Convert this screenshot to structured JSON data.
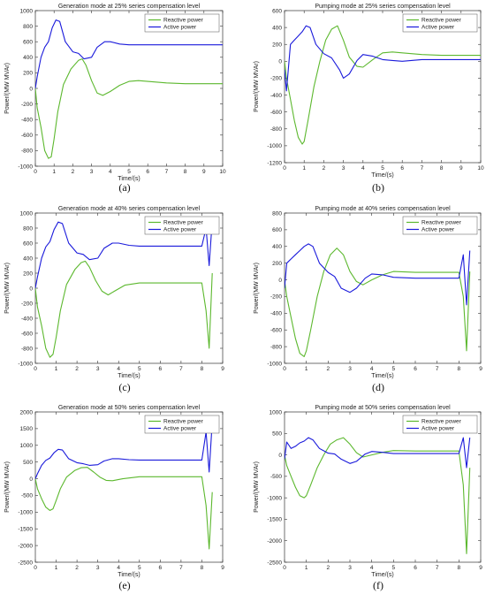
{
  "figure": {
    "captions": [
      "(a)",
      "(b)",
      "(c)",
      "(d)",
      "(e)",
      "(f)"
    ]
  },
  "chart_data": [
    {
      "type": "line",
      "title": "Generation mode at 25% series compensation level",
      "xlabel": "Time/(s)",
      "ylabel": "Power/(MW MVAr)",
      "xlim": [
        0,
        10
      ],
      "ylim": [
        -1000,
        1000
      ],
      "xticks": [
        0,
        1,
        2,
        3,
        4,
        5,
        6,
        7,
        8,
        9,
        10
      ],
      "yticks": [
        -1000,
        -800,
        -600,
        -400,
        -200,
        0,
        200,
        400,
        600,
        800,
        1000
      ],
      "legend_position": "top-right",
      "series": [
        {
          "name": "Reactive power",
          "color": "#5cb82e",
          "x": [
            0,
            0.1,
            0.3,
            0.5,
            0.7,
            0.85,
            1.0,
            1.2,
            1.5,
            1.9,
            2.3,
            2.5,
            2.7,
            3.0,
            3.3,
            3.6,
            4.0,
            4.5,
            5.0,
            5.5,
            6.0,
            7.0,
            8.0,
            9.0,
            10.0
          ],
          "y": [
            0,
            -250,
            -500,
            -800,
            -900,
            -880,
            -650,
            -300,
            50,
            250,
            360,
            380,
            300,
            100,
            -60,
            -90,
            -40,
            40,
            90,
            100,
            90,
            70,
            60,
            60,
            60
          ]
        },
        {
          "name": "Active power",
          "color": "#1a1adb",
          "x": [
            0,
            0.1,
            0.3,
            0.5,
            0.7,
            0.9,
            1.1,
            1.3,
            1.6,
            2.0,
            2.3,
            2.6,
            3.0,
            3.3,
            3.7,
            4.0,
            4.5,
            5.0,
            6.0,
            7.0,
            8.0,
            9.0,
            10.0
          ],
          "y": [
            0,
            150,
            400,
            530,
            600,
            780,
            880,
            860,
            600,
            470,
            450,
            380,
            400,
            530,
            600,
            600,
            570,
            560,
            560,
            560,
            560,
            560,
            560
          ]
        }
      ]
    },
    {
      "type": "line",
      "title": "Pumping mode at 25% series compensation level",
      "xlabel": "Time/(s)",
      "ylabel": "Power/(MW MVAr)",
      "xlim": [
        0,
        10
      ],
      "ylim": [
        -1200,
        600
      ],
      "xticks": [
        0,
        1,
        2,
        3,
        4,
        5,
        6,
        7,
        8,
        9,
        10
      ],
      "yticks": [
        -1200,
        -1000,
        -800,
        -600,
        -400,
        -200,
        0,
        200,
        400,
        600
      ],
      "legend_position": "top-right",
      "series": [
        {
          "name": "Reactive power",
          "color": "#5cb82e",
          "x": [
            0,
            0.1,
            0.3,
            0.5,
            0.7,
            0.9,
            1.0,
            1.2,
            1.5,
            1.8,
            2.1,
            2.4,
            2.7,
            3.0,
            3.3,
            3.7,
            4.0,
            4.5,
            5.0,
            5.5,
            6.0,
            7.0,
            8.0,
            9.0,
            10.0
          ],
          "y": [
            0,
            -200,
            -450,
            -700,
            -900,
            -980,
            -950,
            -700,
            -300,
            0,
            250,
            380,
            420,
            250,
            50,
            -60,
            -70,
            20,
            100,
            110,
            100,
            80,
            70,
            70,
            70
          ]
        },
        {
          "name": "Active power",
          "color": "#1a1adb",
          "x": [
            0,
            0.1,
            0.3,
            0.5,
            0.7,
            0.9,
            1.1,
            1.3,
            1.6,
            2.0,
            2.4,
            2.8,
            3.0,
            3.3,
            3.7,
            4.0,
            4.5,
            5.0,
            5.5,
            6.0,
            7.0,
            8.0,
            9.0,
            10.0
          ],
          "y": [
            -100,
            -350,
            200,
            250,
            300,
            350,
            420,
            400,
            200,
            90,
            40,
            -100,
            -200,
            -150,
            10,
            80,
            60,
            20,
            10,
            0,
            20,
            20,
            20,
            20
          ]
        }
      ]
    },
    {
      "type": "line",
      "title": "Generation mode at 40% series compensation level",
      "xlabel": "Time/(s)",
      "ylabel": "Power/(MW MVAr)",
      "xlim": [
        0,
        9
      ],
      "ylim": [
        -1000,
        1000
      ],
      "xticks": [
        0,
        1,
        2,
        3,
        4,
        5,
        6,
        7,
        8,
        9
      ],
      "yticks": [
        -1000,
        -800,
        -600,
        -400,
        -200,
        0,
        200,
        400,
        600,
        800,
        1000
      ],
      "legend_position": "top-right",
      "series": [
        {
          "name": "Reactive power",
          "color": "#5cb82e",
          "x": [
            0,
            0.1,
            0.3,
            0.5,
            0.7,
            0.85,
            1.0,
            1.2,
            1.5,
            1.9,
            2.2,
            2.4,
            2.6,
            2.9,
            3.2,
            3.5,
            3.8,
            4.3,
            5.0,
            6.0,
            7.0,
            8.0,
            8.2,
            8.35,
            8.5
          ],
          "y": [
            0,
            -250,
            -500,
            -800,
            -920,
            -880,
            -650,
            -300,
            50,
            250,
            340,
            360,
            280,
            100,
            -40,
            -90,
            -40,
            40,
            70,
            70,
            70,
            70,
            -300,
            -800,
            200
          ]
        },
        {
          "name": "Active power",
          "color": "#1a1adb",
          "x": [
            0,
            0.1,
            0.3,
            0.5,
            0.7,
            0.9,
            1.1,
            1.3,
            1.6,
            2.0,
            2.3,
            2.6,
            3.0,
            3.3,
            3.7,
            4.0,
            4.5,
            5.0,
            6.0,
            7.0,
            8.0,
            8.2,
            8.35,
            8.5
          ],
          "y": [
            0,
            150,
            400,
            550,
            620,
            780,
            880,
            860,
            600,
            470,
            450,
            380,
            400,
            530,
            600,
            600,
            570,
            560,
            560,
            560,
            560,
            800,
            300,
            900
          ]
        }
      ]
    },
    {
      "type": "line",
      "title": "Pumping mode at 40% series compensation level",
      "xlabel": "Time/(s)",
      "ylabel": "Power/(MW MVAr)",
      "xlim": [
        0,
        9
      ],
      "ylim": [
        -1000,
        800
      ],
      "xticks": [
        0,
        1,
        2,
        3,
        4,
        5,
        6,
        7,
        8,
        9
      ],
      "yticks": [
        -1000,
        -800,
        -600,
        -400,
        -200,
        0,
        200,
        400,
        600,
        800
      ],
      "legend_position": "top-right",
      "series": [
        {
          "name": "Reactive power",
          "color": "#5cb82e",
          "x": [
            0,
            0.1,
            0.3,
            0.5,
            0.7,
            0.9,
            1.0,
            1.2,
            1.5,
            1.8,
            2.1,
            2.4,
            2.7,
            3.0,
            3.3,
            3.6,
            4.0,
            4.5,
            5.0,
            6.0,
            7.0,
            8.0,
            8.2,
            8.35,
            8.5
          ],
          "y": [
            0,
            -200,
            -450,
            -700,
            -880,
            -920,
            -850,
            -600,
            -200,
            100,
            300,
            380,
            300,
            100,
            -20,
            -60,
            0,
            60,
            100,
            90,
            90,
            90,
            -200,
            -850,
            100
          ]
        },
        {
          "name": "Active power",
          "color": "#1a1adb",
          "x": [
            0,
            0.1,
            0.3,
            0.5,
            0.7,
            0.9,
            1.1,
            1.3,
            1.6,
            2.0,
            2.3,
            2.6,
            3.0,
            3.3,
            3.7,
            4.0,
            4.5,
            5.0,
            6.0,
            7.0,
            8.0,
            8.2,
            8.35,
            8.5
          ],
          "y": [
            -100,
            200,
            250,
            300,
            350,
            400,
            430,
            400,
            200,
            90,
            40,
            -100,
            -150,
            -100,
            20,
            70,
            60,
            30,
            20,
            20,
            20,
            300,
            -300,
            350
          ]
        }
      ]
    },
    {
      "type": "line",
      "title": "Generation mode at 50% series compensation level",
      "xlabel": "Time/(s)",
      "ylabel": "Power/(MW MVAr)",
      "xlim": [
        0,
        9
      ],
      "ylim": [
        -2500,
        2000
      ],
      "xticks": [
        0,
        1,
        2,
        3,
        4,
        5,
        6,
        7,
        8,
        9
      ],
      "yticks": [
        -2500,
        -2000,
        -1500,
        -1000,
        -500,
        0,
        500,
        1000,
        1500,
        2000
      ],
      "legend_position": "top-right",
      "series": [
        {
          "name": "Reactive power",
          "color": "#5cb82e",
          "x": [
            0,
            0.1,
            0.3,
            0.5,
            0.7,
            0.85,
            1.0,
            1.2,
            1.5,
            1.9,
            2.2,
            2.5,
            2.8,
            3.1,
            3.4,
            3.7,
            4.2,
            5.0,
            6.0,
            7.0,
            8.0,
            8.2,
            8.35,
            8.5
          ],
          "y": [
            0,
            -300,
            -600,
            -850,
            -950,
            -900,
            -650,
            -300,
            50,
            250,
            330,
            340,
            200,
            50,
            -50,
            -60,
            0,
            60,
            60,
            60,
            60,
            -800,
            -2100,
            -400
          ]
        },
        {
          "name": "Active power",
          "color": "#1a1adb",
          "x": [
            0,
            0.1,
            0.3,
            0.5,
            0.7,
            0.9,
            1.1,
            1.3,
            1.6,
            2.0,
            2.3,
            2.6,
            3.0,
            3.3,
            3.7,
            4.0,
            4.5,
            5.0,
            6.0,
            7.0,
            8.0,
            8.2,
            8.35,
            8.5
          ],
          "y": [
            0,
            150,
            400,
            550,
            620,
            780,
            880,
            860,
            600,
            480,
            450,
            400,
            420,
            530,
            600,
            600,
            570,
            560,
            560,
            560,
            560,
            1400,
            200,
            1700
          ]
        }
      ]
    },
    {
      "type": "line",
      "title": "Pumping mode at 50% series compensation level",
      "xlabel": "Time/(s)",
      "ylabel": "Power/(MW MVAr)",
      "xlim": [
        0,
        9
      ],
      "ylim": [
        -2500,
        1000
      ],
      "xticks": [
        0,
        1,
        2,
        3,
        4,
        5,
        6,
        7,
        8,
        9
      ],
      "yticks": [
        -2500,
        -2000,
        -1500,
        -1000,
        -500,
        0,
        500,
        1000
      ],
      "legend_position": "top-right",
      "series": [
        {
          "name": "Reactive power",
          "color": "#5cb82e",
          "x": [
            0,
            0.1,
            0.3,
            0.5,
            0.7,
            0.9,
            1.0,
            1.2,
            1.5,
            1.8,
            2.1,
            2.4,
            2.7,
            3.0,
            3.3,
            3.6,
            4.0,
            4.5,
            5.0,
            6.0,
            7.0,
            8.0,
            8.2,
            8.35,
            8.5
          ],
          "y": [
            0,
            -250,
            -500,
            -750,
            -950,
            -1000,
            -950,
            -700,
            -300,
            0,
            250,
            350,
            400,
            250,
            50,
            -50,
            0,
            60,
            100,
            90,
            90,
            90,
            -700,
            -2300,
            -300
          ]
        },
        {
          "name": "Active power",
          "color": "#1a1adb",
          "x": [
            0,
            0.1,
            0.3,
            0.5,
            0.7,
            0.9,
            1.1,
            1.3,
            1.6,
            2.0,
            2.3,
            2.6,
            3.0,
            3.3,
            3.7,
            4.0,
            4.5,
            5.0,
            6.0,
            7.0,
            8.0,
            8.2,
            8.35,
            8.5
          ],
          "y": [
            -100,
            300,
            150,
            200,
            280,
            320,
            400,
            350,
            150,
            40,
            20,
            -100,
            -200,
            -150,
            20,
            80,
            60,
            30,
            30,
            30,
            30,
            400,
            -300,
            400
          ]
        }
      ]
    }
  ]
}
